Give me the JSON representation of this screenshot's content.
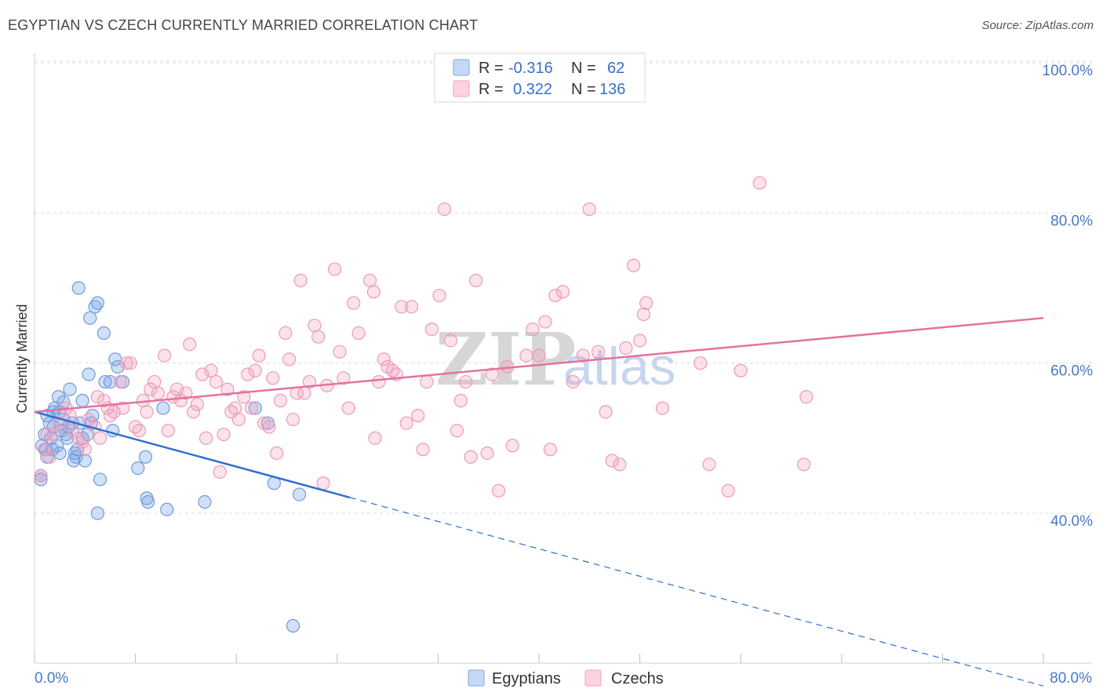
{
  "title": "EGYPTIAN VS CZECH CURRENTLY MARRIED CORRELATION CHART",
  "source": "Source: ZipAtlas.com",
  "watermark": {
    "zip": "ZIP",
    "atlas": "atlas"
  },
  "legend": {
    "r_label": "R =",
    "n_label": "N =",
    "rows": [
      {
        "r": "-0.316",
        "n": "62",
        "color": "#7ba7e6"
      },
      {
        "r": "0.322",
        "n": "136",
        "color": "#f1a0bd"
      }
    ]
  },
  "chart_data": {
    "type": "scatter",
    "title": "EGYPTIAN VS CZECH CURRENTLY MARRIED CORRELATION CHART",
    "xlabel": "",
    "ylabel": "Currently Married",
    "xlim": [
      0,
      80
    ],
    "ylim": [
      20,
      102
    ],
    "x_tick_labels": [
      "0.0%",
      "80.0%"
    ],
    "y_ticks": [
      40,
      60,
      80,
      100
    ],
    "y_tick_labels": [
      "40.0%",
      "60.0%",
      "80.0%",
      "100.0%"
    ],
    "legend_position": "top-center",
    "series": [
      {
        "name": "Egyptians",
        "color": "#6d9be0",
        "trend": {
          "x0": 0,
          "y0": 53.5,
          "x1": 25,
          "y1": 42.1,
          "dash_to_x": 80,
          "dash_to_y": 17.0
        },
        "points": [
          [
            0.5,
            45.0
          ],
          [
            0.5,
            44.5
          ],
          [
            0.6,
            49.0
          ],
          [
            0.8,
            50.5
          ],
          [
            0.9,
            48.5
          ],
          [
            1.0,
            53.0
          ],
          [
            1.0,
            47.5
          ],
          [
            1.2,
            52.0
          ],
          [
            1.3,
            50.0
          ],
          [
            1.5,
            53.5
          ],
          [
            1.5,
            51.5
          ],
          [
            1.6,
            54.0
          ],
          [
            1.8,
            49.0
          ],
          [
            1.9,
            55.5
          ],
          [
            2.0,
            48.0
          ],
          [
            2.0,
            53.5
          ],
          [
            2.1,
            51.0
          ],
          [
            2.3,
            52.5
          ],
          [
            2.3,
            54.8
          ],
          [
            2.5,
            50.5
          ],
          [
            2.7,
            51.5
          ],
          [
            2.8,
            56.5
          ],
          [
            3.0,
            52.0
          ],
          [
            3.1,
            47.0
          ],
          [
            3.2,
            48.0
          ],
          [
            3.3,
            47.5
          ],
          [
            3.4,
            48.5
          ],
          [
            3.5,
            70.0
          ],
          [
            3.6,
            52.0
          ],
          [
            3.8,
            50.0
          ],
          [
            3.8,
            55.0
          ],
          [
            4.0,
            47.0
          ],
          [
            4.2,
            50.5
          ],
          [
            4.3,
            58.5
          ],
          [
            4.4,
            66.0
          ],
          [
            4.5,
            52.0
          ],
          [
            4.6,
            53.0
          ],
          [
            4.8,
            67.5
          ],
          [
            5.0,
            68.0
          ],
          [
            5.0,
            40.0
          ],
          [
            5.2,
            44.5
          ],
          [
            5.5,
            64.0
          ],
          [
            5.6,
            57.5
          ],
          [
            6.0,
            57.5
          ],
          [
            6.2,
            51.0
          ],
          [
            6.4,
            60.5
          ],
          [
            6.6,
            59.5
          ],
          [
            7.0,
            57.5
          ],
          [
            8.2,
            46.0
          ],
          [
            8.8,
            47.5
          ],
          [
            8.9,
            42.0
          ],
          [
            9.0,
            41.5
          ],
          [
            10.2,
            54.0
          ],
          [
            10.5,
            40.5
          ],
          [
            13.5,
            41.5
          ],
          [
            17.5,
            54.0
          ],
          [
            18.5,
            52.0
          ],
          [
            19.0,
            44.0
          ],
          [
            21.0,
            42.5
          ],
          [
            20.5,
            25.0
          ],
          [
            1.4,
            48.5
          ],
          [
            2.6,
            50.0
          ]
        ]
      },
      {
        "name": "Czechs",
        "color": "#f1a0bd",
        "trend": {
          "x0": 0,
          "y0": 53.5,
          "x1": 80,
          "y1": 66.0
        },
        "points": [
          [
            0.5,
            45.0
          ],
          [
            0.8,
            48.5
          ],
          [
            1.0,
            50.5
          ],
          [
            1.2,
            47.5
          ],
          [
            1.5,
            50.5
          ],
          [
            2.0,
            52.0
          ],
          [
            2.5,
            54.0
          ],
          [
            2.8,
            53.0
          ],
          [
            3.0,
            51.0
          ],
          [
            3.5,
            50.0
          ],
          [
            3.8,
            49.5
          ],
          [
            4.0,
            48.5
          ],
          [
            4.3,
            52.5
          ],
          [
            4.8,
            51.5
          ],
          [
            5.0,
            55.5
          ],
          [
            5.2,
            50.0
          ],
          [
            5.5,
            55.0
          ],
          [
            5.8,
            54.0
          ],
          [
            6.0,
            53.0
          ],
          [
            6.3,
            53.5
          ],
          [
            6.8,
            57.5
          ],
          [
            7.0,
            54.0
          ],
          [
            7.3,
            60.0
          ],
          [
            7.6,
            60.0
          ],
          [
            8.0,
            51.5
          ],
          [
            8.3,
            51.0
          ],
          [
            8.6,
            55.0
          ],
          [
            8.9,
            53.5
          ],
          [
            9.2,
            56.5
          ],
          [
            9.5,
            57.5
          ],
          [
            9.8,
            56.0
          ],
          [
            10.3,
            61.0
          ],
          [
            10.6,
            51.0
          ],
          [
            11.0,
            55.5
          ],
          [
            11.3,
            56.5
          ],
          [
            11.6,
            55.0
          ],
          [
            12.0,
            56.0
          ],
          [
            12.3,
            62.5
          ],
          [
            12.6,
            53.5
          ],
          [
            12.9,
            54.5
          ],
          [
            13.3,
            58.5
          ],
          [
            13.6,
            50.0
          ],
          [
            14.0,
            59.0
          ],
          [
            14.4,
            57.5
          ],
          [
            14.7,
            45.5
          ],
          [
            15.0,
            50.5
          ],
          [
            15.3,
            56.5
          ],
          [
            15.6,
            53.5
          ],
          [
            15.9,
            54.0
          ],
          [
            16.2,
            52.5
          ],
          [
            16.6,
            55.5
          ],
          [
            16.9,
            58.5
          ],
          [
            17.2,
            54.0
          ],
          [
            17.5,
            59.0
          ],
          [
            17.8,
            61.0
          ],
          [
            18.2,
            52.0
          ],
          [
            18.6,
            51.5
          ],
          [
            18.9,
            58.0
          ],
          [
            19.2,
            48.0
          ],
          [
            19.5,
            55.0
          ],
          [
            19.9,
            64.0
          ],
          [
            20.2,
            60.5
          ],
          [
            20.5,
            52.5
          ],
          [
            20.8,
            56.0
          ],
          [
            21.1,
            71.0
          ],
          [
            21.4,
            56.0
          ],
          [
            21.8,
            57.5
          ],
          [
            22.2,
            65.0
          ],
          [
            22.5,
            63.5
          ],
          [
            22.9,
            44.0
          ],
          [
            23.2,
            57.0
          ],
          [
            23.8,
            72.5
          ],
          [
            24.2,
            61.5
          ],
          [
            24.5,
            58.0
          ],
          [
            24.9,
            54.0
          ],
          [
            25.3,
            68.0
          ],
          [
            25.7,
            64.0
          ],
          [
            26.6,
            71.0
          ],
          [
            26.9,
            69.5
          ],
          [
            27.3,
            57.5
          ],
          [
            27.7,
            60.5
          ],
          [
            28.0,
            59.5
          ],
          [
            28.4,
            59.0
          ],
          [
            28.7,
            58.5
          ],
          [
            29.1,
            67.5
          ],
          [
            29.5,
            52.0
          ],
          [
            29.9,
            67.5
          ],
          [
            30.4,
            53.0
          ],
          [
            30.8,
            48.5
          ],
          [
            31.1,
            57.5
          ],
          [
            31.5,
            64.5
          ],
          [
            32.1,
            69.0
          ],
          [
            32.5,
            80.5
          ],
          [
            33.0,
            63.0
          ],
          [
            33.5,
            51.0
          ],
          [
            33.8,
            55.0
          ],
          [
            34.2,
            57.5
          ],
          [
            34.6,
            47.5
          ],
          [
            35.0,
            71.0
          ],
          [
            35.9,
            48.0
          ],
          [
            36.3,
            58.5
          ],
          [
            36.8,
            43.0
          ],
          [
            37.5,
            59.5
          ],
          [
            37.9,
            49.0
          ],
          [
            39.0,
            61.0
          ],
          [
            39.5,
            64.5
          ],
          [
            40.0,
            61.0
          ],
          [
            40.5,
            65.5
          ],
          [
            40.9,
            48.5
          ],
          [
            41.3,
            69.0
          ],
          [
            41.9,
            69.5
          ],
          [
            42.7,
            57.5
          ],
          [
            43.5,
            61.0
          ],
          [
            44.0,
            80.5
          ],
          [
            44.7,
            61.5
          ],
          [
            45.3,
            53.5
          ],
          [
            45.8,
            47.0
          ],
          [
            46.4,
            46.5
          ],
          [
            46.9,
            62.0
          ],
          [
            47.5,
            73.0
          ],
          [
            48.0,
            63.0
          ],
          [
            48.3,
            66.5
          ],
          [
            48.5,
            68.0
          ],
          [
            49.8,
            54.0
          ],
          [
            52.8,
            60.0
          ],
          [
            53.5,
            46.5
          ],
          [
            55.0,
            43.0
          ],
          [
            56.0,
            59.0
          ],
          [
            57.5,
            84.0
          ],
          [
            61.0,
            46.5
          ],
          [
            61.2,
            55.5
          ],
          [
            27.0,
            50.0
          ]
        ]
      }
    ]
  },
  "bottom_legend": [
    {
      "label": "Egyptians",
      "color": "#7ba7e6"
    },
    {
      "label": "Czechs",
      "color": "#f1a0bd"
    }
  ]
}
